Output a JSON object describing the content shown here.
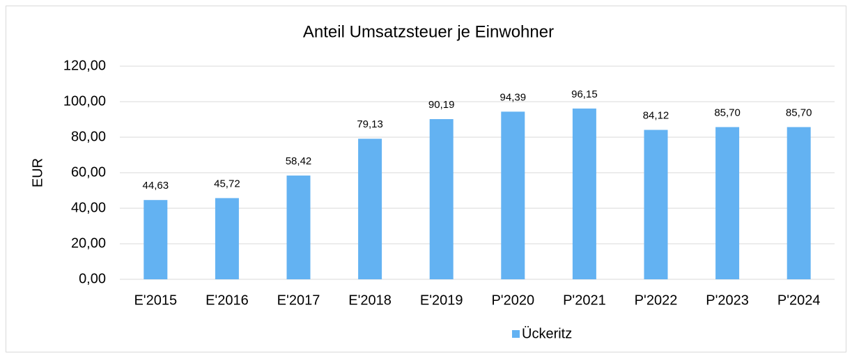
{
  "chart_data": {
    "type": "bar",
    "title": "Anteil Umsatzsteuer je Einwohner",
    "y_label": "EUR",
    "categories": [
      "E'2015",
      "E'2016",
      "E'2017",
      "E'2018",
      "E'2019",
      "P'2020",
      "P'2021",
      "P'2022",
      "P'2023",
      "P'2024"
    ],
    "series": [
      {
        "name": "Ückeritz",
        "color": "#63b2f2",
        "values": [
          44.63,
          45.72,
          58.42,
          79.13,
          90.19,
          94.39,
          96.15,
          84.12,
          85.7,
          85.7
        ],
        "value_labels": [
          "44,63",
          "45,72",
          "58,42",
          "79,13",
          "90,19",
          "94,39",
          "96,15",
          "84,12",
          "85,70",
          "85,70"
        ]
      }
    ],
    "ylim": [
      0,
      120
    ],
    "yticks": [
      {
        "value": 0,
        "label": "0,00"
      },
      {
        "value": 20,
        "label": "20,00"
      },
      {
        "value": 40,
        "label": "40,00"
      },
      {
        "value": 60,
        "label": "60,00"
      },
      {
        "value": 80,
        "label": "80,00"
      },
      {
        "value": 100,
        "label": "100,00"
      },
      {
        "value": 120,
        "label": "120,00"
      }
    ],
    "grid": true,
    "legend": "bottom"
  }
}
